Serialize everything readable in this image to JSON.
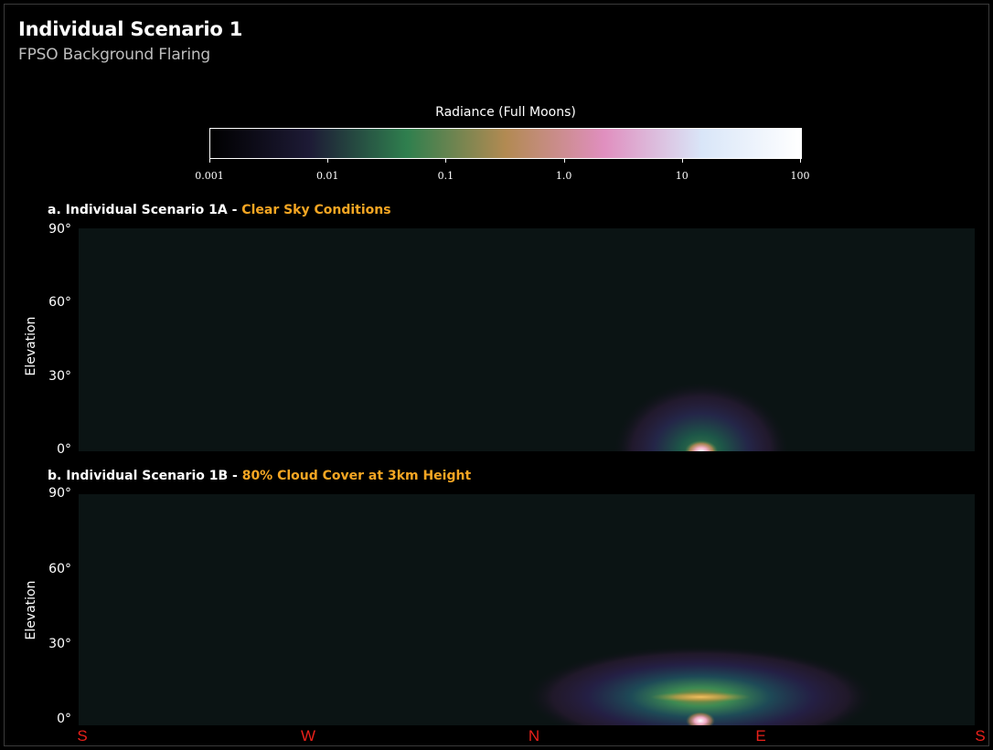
{
  "header": {
    "title": "Individual Scenario 1",
    "subtitle": "FPSO Background Flaring"
  },
  "colorbar": {
    "title": "Radiance (Full Moons)",
    "ticks": [
      "0.001",
      "0.01",
      "0.1",
      "1.0",
      "10",
      "100"
    ],
    "colors": [
      "#000000",
      "#1d1a35",
      "#2f7f4e",
      "#b28a52",
      "#e08fbf",
      "#d9e6f8",
      "#ffffff"
    ]
  },
  "panels": [
    {
      "prefix": "a. Individual Scenario 1A - ",
      "highlight": "Clear Sky Conditions",
      "ylabel": "Elevation",
      "yticks": [
        "90°",
        "60°",
        "30°",
        "0°"
      ]
    },
    {
      "prefix": "b. Individual Scenario 1B - ",
      "highlight": "80% Cloud Cover at 3km Height",
      "ylabel": "Elevation",
      "yticks": [
        "90°",
        "60°",
        "30°",
        "0°"
      ]
    }
  ],
  "directions": [
    "S",
    "W",
    "N",
    "E",
    "S"
  ],
  "chart_data": [
    {
      "type": "heatmap",
      "title": "a. Individual Scenario 1A - Clear Sky Conditions",
      "ylabel": "Elevation",
      "ylim": [
        0,
        90
      ],
      "x_ticks": [
        "S",
        "W",
        "N",
        "E",
        "S"
      ],
      "colorbar_label": "Radiance (Full Moons)",
      "colorbar_scale": "log",
      "colorbar_range": [
        0.001,
        100
      ]
    },
    {
      "type": "heatmap",
      "title": "b. Individual Scenario 1B - 80% Cloud Cover at 3km Height",
      "ylabel": "Elevation",
      "ylim": [
        0,
        90
      ],
      "x_ticks": [
        "S",
        "W",
        "N",
        "E",
        "S"
      ],
      "colorbar_label": "Radiance (Full Moons)",
      "colorbar_scale": "log",
      "colorbar_range": [
        0.001,
        100
      ]
    }
  ]
}
